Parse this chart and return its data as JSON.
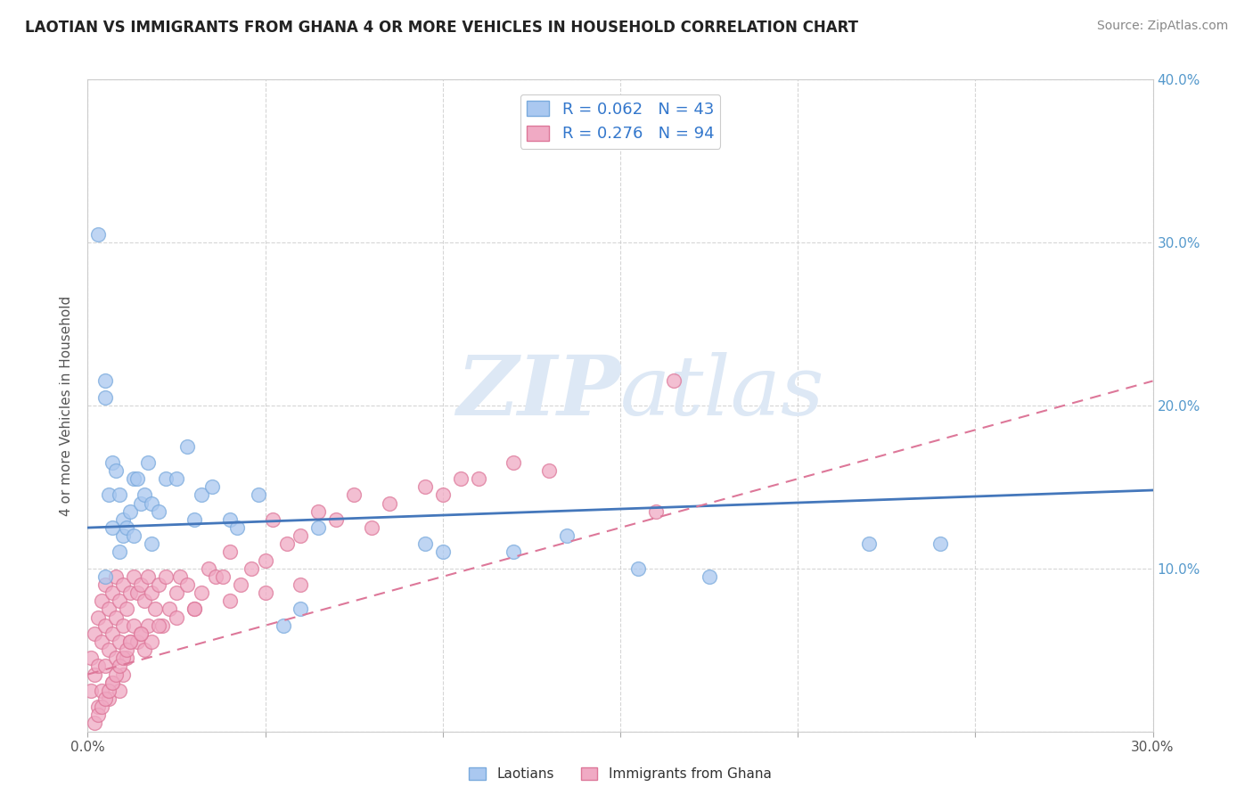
{
  "title": "LAOTIAN VS IMMIGRANTS FROM GHANA 4 OR MORE VEHICLES IN HOUSEHOLD CORRELATION CHART",
  "source": "Source: ZipAtlas.com",
  "ylabel": "4 or more Vehicles in Household",
  "xlim": [
    0.0,
    0.3
  ],
  "ylim": [
    0.0,
    0.4
  ],
  "xticks": [
    0.0,
    0.05,
    0.1,
    0.15,
    0.2,
    0.25,
    0.3
  ],
  "yticks": [
    0.0,
    0.1,
    0.2,
    0.3,
    0.4
  ],
  "legend_labels": [
    "Laotians",
    "Immigrants from Ghana"
  ],
  "r_laotian": 0.062,
  "n_laotian": 43,
  "r_ghana": 0.276,
  "n_ghana": 94,
  "color_laotian": "#aac8f0",
  "color_ghana": "#f0aac4",
  "edge_laotian": "#7aaadd",
  "edge_ghana": "#dd7799",
  "trendline_laotian_color": "#4477bb",
  "trendline_ghana_color": "#dd7799",
  "watermark_color": "#dde8f5",
  "background_color": "#ffffff",
  "grid_color": "#cccccc",
  "lao_x": [
    0.003,
    0.005,
    0.005,
    0.006,
    0.007,
    0.008,
    0.009,
    0.01,
    0.01,
    0.011,
    0.012,
    0.013,
    0.014,
    0.015,
    0.016,
    0.017,
    0.018,
    0.02,
    0.022,
    0.025,
    0.028,
    0.03,
    0.032,
    0.035,
    0.04,
    0.042,
    0.048,
    0.055,
    0.06,
    0.065,
    0.095,
    0.1,
    0.12,
    0.135,
    0.155,
    0.175,
    0.22,
    0.24,
    0.005,
    0.007,
    0.009,
    0.013,
    0.018
  ],
  "lao_y": [
    0.305,
    0.215,
    0.205,
    0.145,
    0.165,
    0.16,
    0.145,
    0.13,
    0.12,
    0.125,
    0.135,
    0.155,
    0.155,
    0.14,
    0.145,
    0.165,
    0.14,
    0.135,
    0.155,
    0.155,
    0.175,
    0.13,
    0.145,
    0.15,
    0.13,
    0.125,
    0.145,
    0.065,
    0.075,
    0.125,
    0.115,
    0.11,
    0.11,
    0.12,
    0.1,
    0.095,
    0.115,
    0.115,
    0.095,
    0.125,
    0.11,
    0.12,
    0.115
  ],
  "gh_x": [
    0.001,
    0.001,
    0.002,
    0.002,
    0.003,
    0.003,
    0.003,
    0.004,
    0.004,
    0.004,
    0.005,
    0.005,
    0.005,
    0.006,
    0.006,
    0.006,
    0.007,
    0.007,
    0.007,
    0.008,
    0.008,
    0.008,
    0.009,
    0.009,
    0.009,
    0.01,
    0.01,
    0.01,
    0.011,
    0.011,
    0.012,
    0.012,
    0.013,
    0.013,
    0.014,
    0.014,
    0.015,
    0.015,
    0.016,
    0.016,
    0.017,
    0.017,
    0.018,
    0.018,
    0.019,
    0.02,
    0.021,
    0.022,
    0.023,
    0.025,
    0.026,
    0.028,
    0.03,
    0.032,
    0.034,
    0.036,
    0.038,
    0.04,
    0.043,
    0.046,
    0.05,
    0.052,
    0.056,
    0.06,
    0.065,
    0.07,
    0.075,
    0.08,
    0.085,
    0.095,
    0.1,
    0.105,
    0.11,
    0.12,
    0.13,
    0.16,
    0.165,
    0.002,
    0.003,
    0.004,
    0.005,
    0.006,
    0.007,
    0.008,
    0.009,
    0.01,
    0.011,
    0.012,
    0.015,
    0.02,
    0.025,
    0.03,
    0.04,
    0.05,
    0.06
  ],
  "gh_y": [
    0.045,
    0.025,
    0.06,
    0.035,
    0.07,
    0.04,
    0.015,
    0.055,
    0.08,
    0.025,
    0.065,
    0.09,
    0.04,
    0.075,
    0.05,
    0.02,
    0.085,
    0.06,
    0.03,
    0.07,
    0.095,
    0.045,
    0.08,
    0.055,
    0.025,
    0.09,
    0.065,
    0.035,
    0.075,
    0.045,
    0.085,
    0.055,
    0.095,
    0.065,
    0.085,
    0.055,
    0.09,
    0.06,
    0.08,
    0.05,
    0.095,
    0.065,
    0.085,
    0.055,
    0.075,
    0.09,
    0.065,
    0.095,
    0.075,
    0.085,
    0.095,
    0.09,
    0.075,
    0.085,
    0.1,
    0.095,
    0.095,
    0.11,
    0.09,
    0.1,
    0.105,
    0.13,
    0.115,
    0.12,
    0.135,
    0.13,
    0.145,
    0.125,
    0.14,
    0.15,
    0.145,
    0.155,
    0.155,
    0.165,
    0.16,
    0.135,
    0.215,
    0.005,
    0.01,
    0.015,
    0.02,
    0.025,
    0.03,
    0.035,
    0.04,
    0.045,
    0.05,
    0.055,
    0.06,
    0.065,
    0.07,
    0.075,
    0.08,
    0.085,
    0.09
  ],
  "lao_trend": [
    0.125,
    0.148
  ],
  "gh_trend": [
    0.035,
    0.215
  ]
}
